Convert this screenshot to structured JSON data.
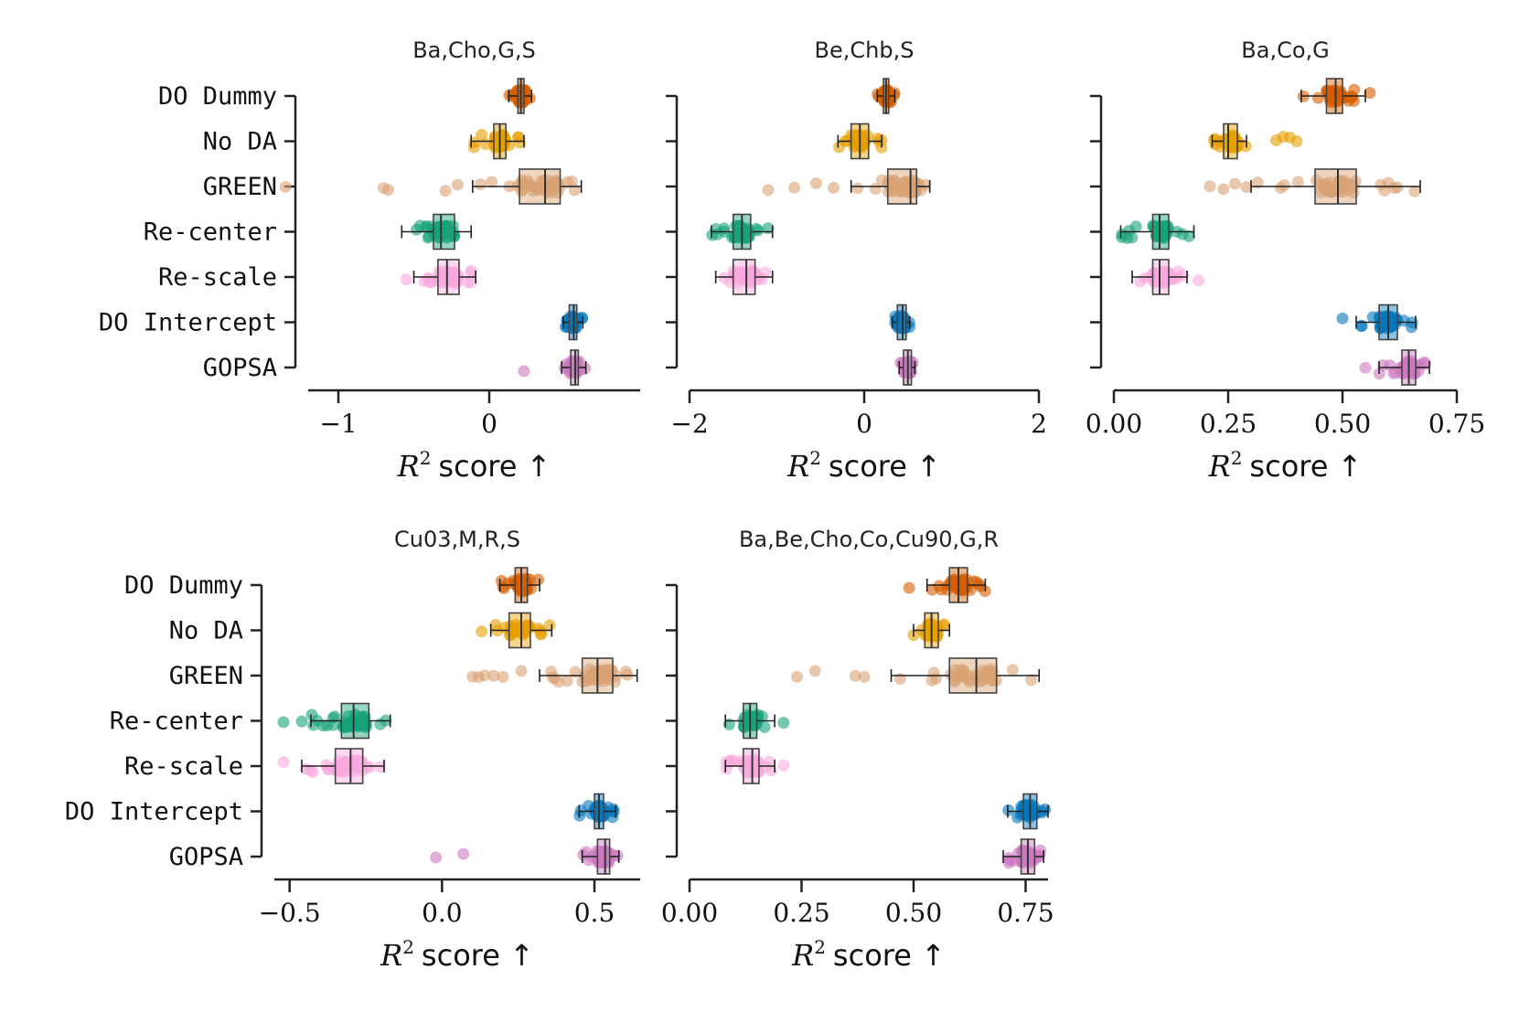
{
  "colors": {
    "DO Dummy": "#d55e00",
    "No DA": "#e69f00",
    "GREEN": "#d9a274",
    "Re-center": "#17a27c",
    "Re-scale": "#f9a8dd",
    "DO Intercept": "#0677bb",
    "GOPSA": "#cb78c0"
  },
  "chart_data": [
    {
      "type": "box+strip",
      "title": "Ba,Cho,G,S",
      "xlabel_r": "R",
      "xlabel_sup": "2",
      "xlabel_word": "score ↑",
      "xlim": [
        -1.2,
        1.0
      ],
      "xticks": [
        -1,
        0
      ],
      "xtick_labels": [
        "−1",
        "0"
      ],
      "show_yticklabels": true,
      "categories": [
        "DO Dummy",
        "No DA",
        "GREEN",
        "Re-center",
        "Re-scale",
        "DO Intercept",
        "GOPSA"
      ],
      "series": [
        {
          "name": "DO Dummy",
          "q1": 0.19,
          "median": 0.21,
          "q3": 0.23,
          "wlow": 0.13,
          "whigh": 0.28,
          "outliers": []
        },
        {
          "name": "No DA",
          "q1": 0.03,
          "median": 0.07,
          "q3": 0.11,
          "wlow": -0.12,
          "whigh": 0.23,
          "outliers": []
        },
        {
          "name": "GREEN",
          "q1": 0.2,
          "median": 0.37,
          "q3": 0.47,
          "wlow": -0.11,
          "whigh": 0.61,
          "outliers": [
            -1.35,
            -0.7,
            -0.67,
            -0.29,
            -0.21
          ]
        },
        {
          "name": "Re-center",
          "q1": -0.37,
          "median": -0.32,
          "q3": -0.23,
          "wlow": -0.58,
          "whigh": -0.12,
          "outliers": []
        },
        {
          "name": "Re-scale",
          "q1": -0.34,
          "median": -0.28,
          "q3": -0.2,
          "wlow": -0.5,
          "whigh": -0.09,
          "outliers": [
            -0.55
          ]
        },
        {
          "name": "DO Intercept",
          "q1": 0.53,
          "median": 0.56,
          "q3": 0.58,
          "wlow": 0.49,
          "whigh": 0.62,
          "outliers": []
        },
        {
          "name": "GOPSA",
          "q1": 0.54,
          "median": 0.57,
          "q3": 0.59,
          "wlow": 0.48,
          "whigh": 0.64,
          "outliers": [
            0.23
          ]
        }
      ]
    },
    {
      "type": "box+strip",
      "title": "Be,Chb,S",
      "xlabel_r": "R",
      "xlabel_sup": "2",
      "xlabel_word": "score ↑",
      "xlim": [
        -2.0,
        2.0
      ],
      "xticks": [
        -2,
        0,
        2
      ],
      "xtick_labels": [
        "−2",
        "0",
        "2"
      ],
      "show_yticklabels": false,
      "categories": [
        "DO Dummy",
        "No DA",
        "GREEN",
        "Re-center",
        "Re-scale",
        "DO Intercept",
        "GOPSA"
      ],
      "series": [
        {
          "name": "DO Dummy",
          "q1": 0.22,
          "median": 0.25,
          "q3": 0.28,
          "wlow": 0.15,
          "whigh": 0.35,
          "outliers": []
        },
        {
          "name": "No DA",
          "q1": -0.15,
          "median": -0.05,
          "q3": 0.05,
          "wlow": -0.3,
          "whigh": 0.2,
          "outliers": []
        },
        {
          "name": "GREEN",
          "q1": 0.27,
          "median": 0.53,
          "q3": 0.6,
          "wlow": -0.15,
          "whigh": 0.75,
          "outliers": [
            -1.1,
            -0.8,
            -0.55,
            -0.35
          ]
        },
        {
          "name": "Re-center",
          "q1": -1.5,
          "median": -1.4,
          "q3": -1.3,
          "wlow": -1.75,
          "whigh": -1.05,
          "outliers": []
        },
        {
          "name": "Re-scale",
          "q1": -1.5,
          "median": -1.35,
          "q3": -1.25,
          "wlow": -1.7,
          "whigh": -1.05,
          "outliers": []
        },
        {
          "name": "DO Intercept",
          "q1": 0.38,
          "median": 0.44,
          "q3": 0.48,
          "wlow": 0.32,
          "whigh": 0.52,
          "outliers": []
        },
        {
          "name": "GOPSA",
          "q1": 0.45,
          "median": 0.5,
          "q3": 0.54,
          "wlow": 0.4,
          "whigh": 0.58,
          "outliers": []
        }
      ]
    },
    {
      "type": "box+strip",
      "title": "Ba,Co,G",
      "xlabel_r": "R",
      "xlabel_sup": "2",
      "xlabel_word": "score ↑",
      "xlim": [
        0.0,
        0.75
      ],
      "xticks": [
        0.0,
        0.25,
        0.5,
        0.75
      ],
      "xtick_labels": [
        "0.00",
        "0.25",
        "0.50",
        "0.75"
      ],
      "show_yticklabels": false,
      "categories": [
        "DO Dummy",
        "No DA",
        "GREEN",
        "Re-center",
        "Re-scale",
        "DO Intercept",
        "GOPSA"
      ],
      "series": [
        {
          "name": "DO Dummy",
          "q1": 0.465,
          "median": 0.485,
          "q3": 0.5,
          "wlow": 0.41,
          "whigh": 0.55,
          "outliers": [
            0.56
          ]
        },
        {
          "name": "No DA",
          "q1": 0.24,
          "median": 0.25,
          "q3": 0.27,
          "wlow": 0.215,
          "whigh": 0.29,
          "outliers": [
            0.355,
            0.37,
            0.385,
            0.4
          ]
        },
        {
          "name": "GREEN",
          "q1": 0.44,
          "median": 0.49,
          "q3": 0.53,
          "wlow": 0.3,
          "whigh": 0.67,
          "outliers": [
            0.21,
            0.24,
            0.265,
            0.29
          ]
        },
        {
          "name": "Re-center",
          "q1": 0.085,
          "median": 0.1,
          "q3": 0.12,
          "wlow": 0.015,
          "whigh": 0.175,
          "outliers": []
        },
        {
          "name": "Re-scale",
          "q1": 0.085,
          "median": 0.1,
          "q3": 0.12,
          "wlow": 0.04,
          "whigh": 0.16,
          "outliers": [
            0.185
          ]
        },
        {
          "name": "DO Intercept",
          "q1": 0.58,
          "median": 0.6,
          "q3": 0.62,
          "wlow": 0.53,
          "whigh": 0.66,
          "outliers": [
            0.5
          ]
        },
        {
          "name": "GOPSA",
          "q1": 0.63,
          "median": 0.645,
          "q3": 0.66,
          "wlow": 0.58,
          "whigh": 0.69,
          "outliers": [
            0.55
          ]
        }
      ]
    },
    {
      "type": "box+strip",
      "title": "Cu03,M,R,S",
      "xlabel_r": "R",
      "xlabel_sup": "2",
      "xlabel_word": "score ↑",
      "xlim": [
        -0.55,
        0.65
      ],
      "xticks": [
        -0.5,
        0.0,
        0.5
      ],
      "xtick_labels": [
        "−0.5",
        "0.0",
        "0.5"
      ],
      "show_yticklabels": true,
      "categories": [
        "DO Dummy",
        "No DA",
        "GREEN",
        "Re-center",
        "Re-scale",
        "DO Intercept",
        "GOPSA"
      ],
      "series": [
        {
          "name": "DO Dummy",
          "q1": 0.24,
          "median": 0.26,
          "q3": 0.28,
          "wlow": 0.19,
          "whigh": 0.32,
          "outliers": []
        },
        {
          "name": "No DA",
          "q1": 0.22,
          "median": 0.26,
          "q3": 0.29,
          "wlow": 0.16,
          "whigh": 0.36,
          "outliers": [
            0.13
          ]
        },
        {
          "name": "GREEN",
          "q1": 0.46,
          "median": 0.51,
          "q3": 0.56,
          "wlow": 0.32,
          "whigh": 0.64,
          "outliers": [
            0.1,
            0.12,
            0.14,
            0.17,
            0.2,
            0.26
          ]
        },
        {
          "name": "Re-center",
          "q1": -0.33,
          "median": -0.29,
          "q3": -0.24,
          "wlow": -0.43,
          "whigh": -0.17,
          "outliers": [
            -0.52,
            -0.46
          ]
        },
        {
          "name": "Re-scale",
          "q1": -0.35,
          "median": -0.3,
          "q3": -0.26,
          "wlow": -0.46,
          "whigh": -0.19,
          "outliers": [
            -0.52
          ]
        },
        {
          "name": "DO Intercept",
          "q1": 0.5,
          "median": 0.515,
          "q3": 0.53,
          "wlow": 0.45,
          "whigh": 0.57,
          "outliers": []
        },
        {
          "name": "GOPSA",
          "q1": 0.51,
          "median": 0.535,
          "q3": 0.55,
          "wlow": 0.46,
          "whigh": 0.58,
          "outliers": [
            -0.02,
            0.07
          ]
        }
      ]
    },
    {
      "type": "box+strip",
      "title": "Ba,Be,Cho,Co,Cu90,G,R",
      "xlabel_r": "R",
      "xlabel_sup": "2",
      "xlabel_word": "score ↑",
      "xlim": [
        0.0,
        0.8
      ],
      "xticks": [
        0.0,
        0.25,
        0.5,
        0.75
      ],
      "xtick_labels": [
        "0.00",
        "0.25",
        "0.50",
        "0.75"
      ],
      "show_yticklabels": false,
      "categories": [
        "DO Dummy",
        "No DA",
        "GREEN",
        "Re-center",
        "Re-scale",
        "DO Intercept",
        "GOPSA"
      ],
      "series": [
        {
          "name": "DO Dummy",
          "q1": 0.58,
          "median": 0.6,
          "q3": 0.62,
          "wlow": 0.53,
          "whigh": 0.66,
          "outliers": [
            0.49
          ]
        },
        {
          "name": "No DA",
          "q1": 0.525,
          "median": 0.54,
          "q3": 0.555,
          "wlow": 0.5,
          "whigh": 0.58,
          "outliers": []
        },
        {
          "name": "GREEN",
          "q1": 0.58,
          "median": 0.64,
          "q3": 0.685,
          "wlow": 0.45,
          "whigh": 0.78,
          "outliers": [
            0.24,
            0.28,
            0.37,
            0.39
          ]
        },
        {
          "name": "Re-center",
          "q1": 0.12,
          "median": 0.135,
          "q3": 0.15,
          "wlow": 0.08,
          "whigh": 0.19,
          "outliers": [
            0.21
          ]
        },
        {
          "name": "Re-scale",
          "q1": 0.12,
          "median": 0.14,
          "q3": 0.155,
          "wlow": 0.08,
          "whigh": 0.19,
          "outliers": [
            0.21
          ]
        },
        {
          "name": "DO Intercept",
          "q1": 0.745,
          "median": 0.76,
          "q3": 0.775,
          "wlow": 0.71,
          "whigh": 0.8,
          "outliers": []
        },
        {
          "name": "GOPSA",
          "q1": 0.74,
          "median": 0.755,
          "q3": 0.77,
          "wlow": 0.7,
          "whigh": 0.79,
          "outliers": []
        }
      ]
    }
  ]
}
